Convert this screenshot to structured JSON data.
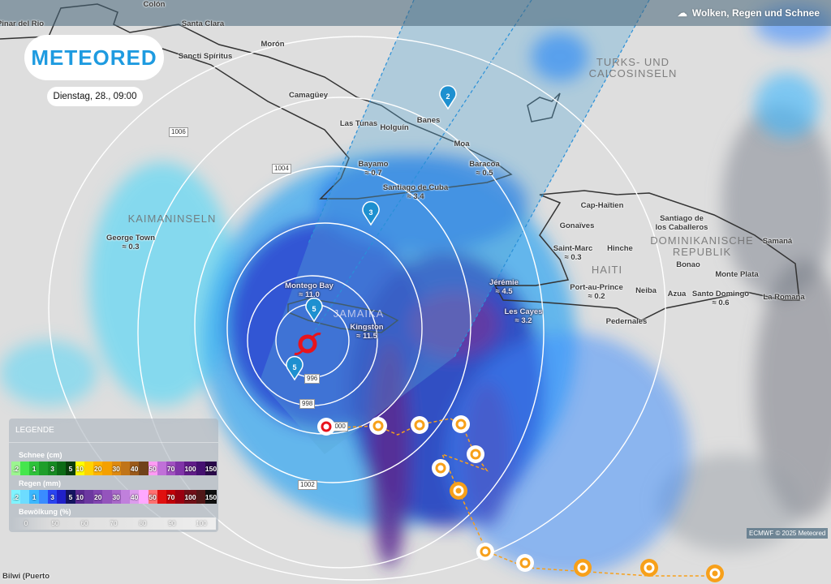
{
  "header": {
    "layer_title": "Wolken, Regen und Schnee",
    "layer_icon": "cloud-rain-icon"
  },
  "logo": "METEORED",
  "date": "Dienstag, 28., 09:00",
  "countries": [
    "KAIMANINSELN",
    "TURKS- UND CAICOSINSELN",
    "HAITI",
    "DOMINIKANISCHE REPUBLIK",
    "JAMAIKA"
  ],
  "cities": [
    {
      "name": "Pinar del Rio"
    },
    {
      "name": "Colón"
    },
    {
      "name": "Santa Clara"
    },
    {
      "name": "Sancti Spíritus"
    },
    {
      "name": "Morón"
    },
    {
      "name": "Camagüey"
    },
    {
      "name": "Las Tunas"
    },
    {
      "name": "Holguín"
    },
    {
      "name": "Banes"
    },
    {
      "name": "Moa"
    },
    {
      "name": "Bayamo",
      "value": "0.7"
    },
    {
      "name": "Baracoa",
      "value": "0.5"
    },
    {
      "name": "Santiago de Cuba",
      "value": "3.4"
    },
    {
      "name": "George Town",
      "value": "0.3"
    },
    {
      "name": "Montego Bay",
      "value": "11.0"
    },
    {
      "name": "Kingston",
      "value": "11.5"
    },
    {
      "name": "Cap-Haïtien"
    },
    {
      "name": "Gonaïves"
    },
    {
      "name": "Saint-Marc",
      "value": "0.3"
    },
    {
      "name": "Hinche"
    },
    {
      "name": "Jérémie",
      "value": "4.5"
    },
    {
      "name": "Les Cayes",
      "value": "3.2"
    },
    {
      "name": "Port-au-Prince",
      "value": "0.2"
    },
    {
      "name": "Neiba"
    },
    {
      "name": "Pedernales"
    },
    {
      "name": "Santiago de los Caballeros"
    },
    {
      "name": "Samaná"
    },
    {
      "name": "Bonao"
    },
    {
      "name": "Monte Plata"
    },
    {
      "name": "Azua"
    },
    {
      "name": "Santo Domingo",
      "value": "0.6"
    },
    {
      "name": "La Romana"
    },
    {
      "name": "Bilwi (Puerto"
    }
  ],
  "isobars": [
    "1006",
    "1004",
    "996",
    "998",
    "1000",
    "1002"
  ],
  "storm_markers": [
    {
      "category": "2",
      "color": "#1e90d0"
    },
    {
      "category": "3",
      "color": "#1e90d0"
    },
    {
      "category": "5",
      "color": "#1e90d0"
    },
    {
      "category": "5",
      "color": "#1e90d0"
    }
  ],
  "hurricane_color": "#e8131b",
  "forecast_storm_color": "#f7a01a",
  "legend": {
    "title": "LEGENDE",
    "snow": {
      "label": "Schnee (cm)",
      "steps": [
        {
          "v": ".2",
          "c": "#9cf590"
        },
        {
          "v": "",
          "c": "#45e64d"
        },
        {
          "v": "1",
          "c": "#2ec23a"
        },
        {
          "v": "",
          "c": "#1f9e2b"
        },
        {
          "v": "3",
          "c": "#178a22"
        },
        {
          "v": "",
          "c": "#0d6b16"
        },
        {
          "v": "5",
          "c": "#0a3f0c"
        },
        {
          "v": "10",
          "c": "#ffff00"
        },
        {
          "v": "",
          "c": "#ffd200"
        },
        {
          "v": "20",
          "c": "#ffb300"
        },
        {
          "v": "",
          "c": "#f4a000"
        },
        {
          "v": "30",
          "c": "#de8a12"
        },
        {
          "v": "",
          "c": "#c07418"
        },
        {
          "v": "40",
          "c": "#9b5a1a"
        },
        {
          "v": "",
          "c": "#70421a"
        },
        {
          "v": "50",
          "c": "#ff9cf5"
        },
        {
          "v": "",
          "c": "#c070d8"
        },
        {
          "v": "70",
          "c": "#a050c0"
        },
        {
          "v": "",
          "c": "#8034a8"
        },
        {
          "v": "100",
          "c": "#601c88"
        },
        {
          "v": "",
          "c": "#451070"
        },
        {
          "v": "150",
          "c": "#2a0a4a"
        }
      ]
    },
    "rain": {
      "label": "Regen (mm)",
      "steps": [
        {
          "v": ".2",
          "c": "#80f4ff"
        },
        {
          "v": "",
          "c": "#6ddcff"
        },
        {
          "v": "1",
          "c": "#3cb8ff"
        },
        {
          "v": "",
          "c": "#3a8cff"
        },
        {
          "v": "3",
          "c": "#2a44f0"
        },
        {
          "v": "",
          "c": "#2020c8"
        },
        {
          "v": "5",
          "c": "#141460"
        },
        {
          "v": "10",
          "c": "#5a2a90"
        },
        {
          "v": "",
          "c": "#6c38a0"
        },
        {
          "v": "20",
          "c": "#8044b0"
        },
        {
          "v": "",
          "c": "#9454bc"
        },
        {
          "v": "30",
          "c": "#a868c8"
        },
        {
          "v": "",
          "c": "#c080dc"
        },
        {
          "v": "40",
          "c": "#dc9cec"
        },
        {
          "v": "",
          "c": "#ffa8ff"
        },
        {
          "v": "50",
          "c": "#ff7070"
        },
        {
          "v": "",
          "c": "#e01010"
        },
        {
          "v": "70",
          "c": "#c00008"
        },
        {
          "v": "",
          "c": "#9a0010"
        },
        {
          "v": "100",
          "c": "#701018"
        },
        {
          "v": "",
          "c": "#501818"
        },
        {
          "v": "150",
          "c": "#101010"
        }
      ]
    },
    "clouds": {
      "label": "Bewölkung (%)",
      "steps": [
        "0",
        "50",
        "60",
        "70",
        "80",
        "90",
        "100"
      ]
    }
  },
  "copyright": "ECMWF © 2025 Meteored"
}
